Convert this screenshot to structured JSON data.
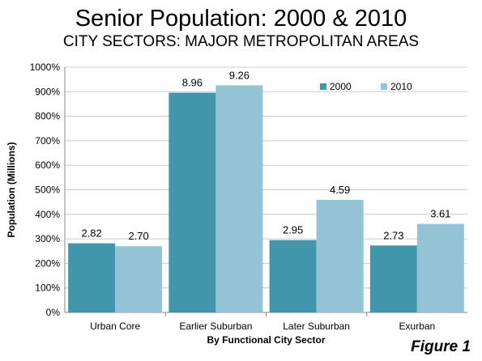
{
  "title": "Senior Population: 2000 & 2010",
  "subtitle": "CITY SECTORS: MAJOR METROPOLITAN AREAS",
  "figure_label": "Figure 1",
  "chart_data": {
    "type": "bar",
    "categories": [
      "Urban Core",
      "Earlier Suburban",
      "Later Suburban",
      "Exurban"
    ],
    "series": [
      {
        "name": "2000",
        "values": [
          2.82,
          8.96,
          2.95,
          2.73
        ],
        "labels": [
          "2.82",
          "8.96",
          "2.95",
          "2.73"
        ],
        "color": "#4196ac"
      },
      {
        "name": "2010",
        "values": [
          2.7,
          9.26,
          4.59,
          3.61
        ],
        "labels": [
          "2.70",
          "9.26",
          "4.59",
          "3.61"
        ],
        "color": "#93c3d5"
      }
    ],
    "ylim": [
      0,
      10
    ],
    "yticks": [
      0,
      1,
      2,
      3,
      4,
      5,
      6,
      7,
      8,
      9,
      10
    ],
    "ytick_labels": [
      "0%",
      "100%",
      "200%",
      "300%",
      "400%",
      "500%",
      "600%",
      "700%",
      "800%",
      "900%",
      "1000%"
    ],
    "xlabel": "By Functional City Sector",
    "ylabel": "Population (Millions)",
    "legend_position": "top-right",
    "grid": true,
    "grid_color": "#cccccc",
    "axis_color": "#888888"
  }
}
